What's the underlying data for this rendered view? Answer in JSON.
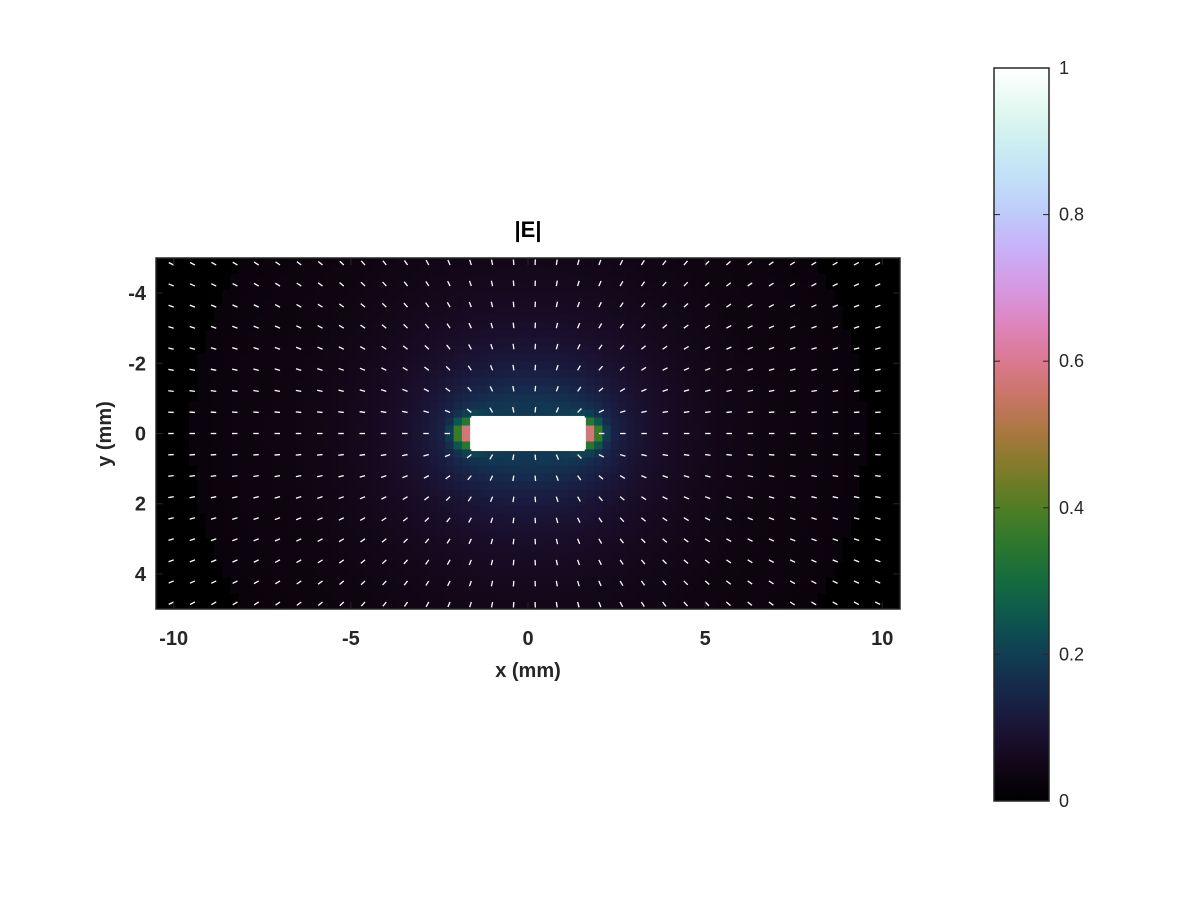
{
  "chart_data": {
    "type": "heatmap",
    "title": "|E|",
    "xlabel": "x (mm)",
    "ylabel": "y (mm)",
    "xlim": [
      -10.5,
      10.5
    ],
    "ylim": [
      -5,
      5
    ],
    "y_reversed": true,
    "x_ticks": [
      -10,
      -5,
      0,
      5,
      10
    ],
    "x_tick_labels": [
      "-10",
      "-5",
      "0",
      "5",
      "10"
    ],
    "y_ticks": [
      -4,
      -2,
      0,
      2,
      4
    ],
    "y_tick_labels": [
      "-4",
      "-2",
      "0",
      "2",
      "4"
    ],
    "grid": false,
    "colormap": "cubehelix",
    "colorbar": {
      "position": "right",
      "range": [
        0,
        1
      ],
      "ticks": [
        0,
        0.2,
        0.4,
        0.6,
        0.8,
        1
      ],
      "tick_labels": [
        "0",
        "0.2",
        "0.4",
        "0.6",
        "0.8",
        "1"
      ]
    },
    "conductor": {
      "x_range": [
        -1.6,
        1.6
      ],
      "y_range": [
        -0.5,
        0.5
      ],
      "value": 1
    },
    "field_peak_points": [
      [
        -1.7,
        0
      ],
      [
        1.7,
        0
      ]
    ],
    "quiver": {
      "color": "#ffffff",
      "x_spacing": 0.6,
      "y_spacing": 0.6
    },
    "background_color": "#000000"
  }
}
